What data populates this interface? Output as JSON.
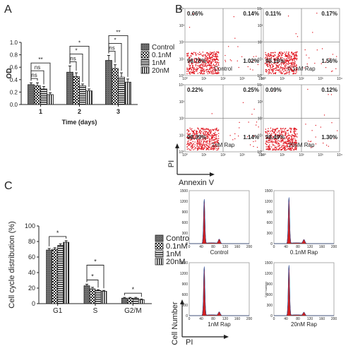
{
  "panel_labels": [
    "A",
    "B",
    "C"
  ],
  "patterns": {
    "Control": "dark",
    "0.1nM": "check",
    "1nM": "hstripe",
    "20nM": "vstripe"
  },
  "chart_data": [
    {
      "id": "A",
      "type": "bar",
      "title": "",
      "xlabel": "Time (days)",
      "ylabel": "OD",
      "categories": [
        "1",
        "2",
        "3"
      ],
      "ylim": [
        0,
        1.0
      ],
      "yticks": [
        "0.0",
        "0.2",
        "0.4",
        "0.6",
        "0.8",
        "1.0"
      ],
      "legend": "right",
      "series": [
        {
          "name": "Control",
          "values": [
            0.32,
            0.52,
            0.71
          ],
          "errors": [
            0.03,
            0.1,
            0.08
          ]
        },
        {
          "name": "0.1nM",
          "values": [
            0.3,
            0.45,
            0.58
          ],
          "errors": [
            0.05,
            0.06,
            0.06
          ]
        },
        {
          "name": "1nM",
          "values": [
            0.25,
            0.3,
            0.44
          ],
          "errors": [
            0.04,
            0.03,
            0.07
          ]
        },
        {
          "name": "20nM",
          "values": [
            0.16,
            0.22,
            0.36
          ],
          "errors": [
            0.03,
            0.03,
            0.05
          ]
        }
      ],
      "annotations": [
        {
          "category": "1",
          "series_from": "Control",
          "series_to": "0.1nM",
          "text": "ns"
        },
        {
          "category": "1",
          "series_from": "Control",
          "series_to": "1nM",
          "text": "ns"
        },
        {
          "category": "1",
          "series_from": "Control",
          "series_to": "20nM",
          "text": "**"
        },
        {
          "category": "2",
          "series_from": "Control",
          "series_to": "0.1nM",
          "text": "ns"
        },
        {
          "category": "2",
          "series_from": "Control",
          "series_to": "1nM",
          "text": "*"
        },
        {
          "category": "2",
          "series_from": "Control",
          "series_to": "20nM",
          "text": "*"
        },
        {
          "category": "3",
          "series_from": "Control",
          "series_to": "0.1nM",
          "text": "ns"
        },
        {
          "category": "3",
          "series_from": "Control",
          "series_to": "1nM",
          "text": "*"
        },
        {
          "category": "3",
          "series_from": "Control",
          "series_to": "20nM",
          "text": "**"
        }
      ]
    },
    {
      "id": "B",
      "type": "scatter",
      "subtype": "flow-cytometry-quadrant",
      "xlabel": "Annexin V",
      "ylabel": "PI",
      "axis_scale": "log",
      "tick_labels": [
        "10⁰",
        "10¹",
        "10²",
        "10³",
        "10⁴"
      ],
      "plots": [
        {
          "name": "Control",
          "quadrants": {
            "UL": "0.06%",
            "UR": "0.14%",
            "LL": "98.78%",
            "LR": "1.02%"
          }
        },
        {
          "name": "0.1nM Rap",
          "quadrants": {
            "UL": "0.11%",
            "UR": "0.17%",
            "LL": "98.16%",
            "LR": "1.56%"
          }
        },
        {
          "name": "1nM Rap",
          "quadrants": {
            "UL": "0.22%",
            "UR": "0.25%",
            "LL": "98.39%",
            "LR": "1.14%"
          }
        },
        {
          "name": "20nM Rap",
          "quadrants": {
            "UL": "0.09%",
            "UR": "0.12%",
            "LL": "98.49%",
            "LR": "1.30%"
          }
        }
      ]
    },
    {
      "id": "C",
      "type": "bar",
      "title": "",
      "xlabel": "",
      "ylabel": "Cell cycle distribution (%)",
      "categories": [
        "G1",
        "S",
        "G2/M"
      ],
      "ylim": [
        0,
        100
      ],
      "yticks": [
        "0",
        "20",
        "40",
        "60",
        "80",
        "100"
      ],
      "legend": "right",
      "series": [
        {
          "name": "Control",
          "values": [
            69,
            23,
            7
          ],
          "errors": [
            2,
            2,
            1
          ]
        },
        {
          "name": "0.1nM",
          "values": [
            70,
            19,
            7
          ],
          "errors": [
            2,
            2,
            1
          ]
        },
        {
          "name": "1nM",
          "values": [
            75,
            17,
            7
          ],
          "errors": [
            2,
            1,
            1
          ]
        },
        {
          "name": "20nM",
          "values": [
            79,
            16,
            5
          ],
          "errors": [
            2,
            1,
            1
          ]
        }
      ],
      "annotations": [
        {
          "category": "G1",
          "series_from": "Control",
          "series_to": "20nM",
          "text": "*"
        },
        {
          "category": "S",
          "series_from": "Control",
          "series_to": "1nM",
          "text": "*"
        },
        {
          "category": "S",
          "series_from": "Control",
          "series_to": "20nM",
          "text": "*"
        },
        {
          "category": "G2/M",
          "series_from": "Control",
          "series_to": "20nM",
          "text": "*"
        }
      ]
    },
    {
      "id": "C-histograms",
      "type": "area",
      "subtype": "dna-content-histogram",
      "xlabel": "PI",
      "ylabel": "Cell Number",
      "xticks": [
        "0",
        "40",
        "80",
        "120",
        "160",
        "200"
      ],
      "yticks": [
        "0",
        "300",
        "600",
        "900",
        "1200",
        "1500"
      ],
      "xlim": [
        0,
        200
      ],
      "ylim": [
        0,
        1500
      ],
      "plots": [
        {
          "name": "Control",
          "g1_peak": [
            50,
            1250
          ],
          "g2_peak": [
            100,
            120
          ]
        },
        {
          "name": "0.1nM Rap",
          "g1_peak": [
            50,
            1300
          ],
          "g2_peak": [
            100,
            110
          ]
        },
        {
          "name": "1nM Rap",
          "g1_peak": [
            50,
            1380
          ],
          "g2_peak": [
            100,
            100
          ]
        },
        {
          "name": "20nM Rap",
          "g1_peak": [
            50,
            1420
          ],
          "g2_peak": [
            100,
            90
          ]
        }
      ],
      "inner_ylabel": "Cell Number"
    }
  ]
}
